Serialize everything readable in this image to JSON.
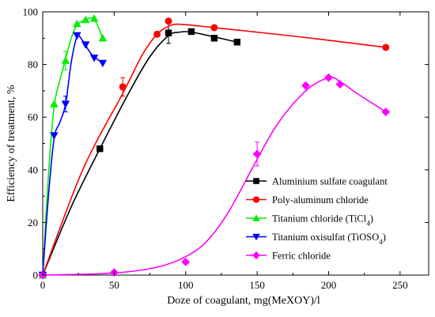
{
  "chart_data": {
    "type": "scatter",
    "xlabel": "Doze of coagulant, mg(MeXOY)/l",
    "ylabel": "Efficiency of treatment, %",
    "xlim": [
      0,
      270
    ],
    "ylim": [
      0,
      100
    ],
    "xticks": [
      0,
      50,
      100,
      150,
      200,
      250
    ],
    "yticks": [
      0,
      20,
      40,
      60,
      80,
      100
    ],
    "grid": false,
    "legend_position": "lower-right",
    "series": [
      {
        "name": "Aluminium sulfate coagulant",
        "color": "#000000",
        "marker": "square",
        "x": [
          0,
          40,
          88,
          104,
          120,
          136
        ],
        "y": [
          0,
          48,
          92,
          92.5,
          90,
          88.5
        ],
        "curve": [
          [
            0,
            0
          ],
          [
            20,
            26
          ],
          [
            40,
            48
          ],
          [
            60,
            69
          ],
          [
            75,
            83
          ],
          [
            88,
            91
          ],
          [
            96,
            92.3
          ],
          [
            104,
            92.3
          ],
          [
            120,
            90.5
          ],
          [
            136,
            88.5
          ]
        ],
        "errors": [
          null,
          null,
          4,
          null,
          null,
          null
        ]
      },
      {
        "name": "Poly-aluminum chloride",
        "color": "#ff0000",
        "marker": "circle",
        "x": [
          0,
          56,
          80,
          88,
          120,
          240
        ],
        "y": [
          0,
          71.5,
          91.5,
          96.5,
          94,
          86.5
        ],
        "curve": [
          [
            0,
            0
          ],
          [
            28,
            40
          ],
          [
            56,
            69
          ],
          [
            70,
            84
          ],
          [
            80,
            91.5
          ],
          [
            88,
            94.5
          ],
          [
            96,
            95.3
          ],
          [
            120,
            94
          ],
          [
            180,
            90.5
          ],
          [
            240,
            86.5
          ]
        ],
        "errors": [
          null,
          3.5,
          null,
          null,
          null,
          null
        ]
      },
      {
        "name": "Titanium chloride (TiCl4)",
        "color": "#00ee00",
        "marker": "triangle-up",
        "x": [
          0,
          8,
          16,
          24,
          30,
          36,
          42
        ],
        "y": [
          0,
          65,
          81.5,
          95.5,
          97,
          97.5,
          90
        ],
        "curve": [
          [
            0,
            0
          ],
          [
            4,
            38
          ],
          [
            8,
            64
          ],
          [
            12,
            74
          ],
          [
            16,
            82
          ],
          [
            20,
            90
          ],
          [
            24,
            95
          ],
          [
            30,
            97
          ],
          [
            36,
            97.2
          ],
          [
            42,
            90
          ]
        ],
        "errors": [
          null,
          null,
          3.5,
          null,
          null,
          null,
          null
        ]
      },
      {
        "name": "Titanium oxisulfat (TiOSO4)",
        "color": "#0000ff",
        "marker": "triangle-down",
        "x": [
          0,
          8,
          16,
          24,
          30,
          36,
          42
        ],
        "y": [
          0,
          53,
          65,
          91,
          87.5,
          82.5,
          80.5
        ],
        "curve": [
          [
            0,
            0
          ],
          [
            4,
            30
          ],
          [
            8,
            52
          ],
          [
            12,
            58
          ],
          [
            16,
            65
          ],
          [
            20,
            81
          ],
          [
            24,
            90.5
          ],
          [
            28,
            89
          ],
          [
            34,
            84
          ],
          [
            42,
            80.5
          ]
        ],
        "errors": [
          null,
          null,
          3,
          null,
          null,
          null,
          null
        ]
      },
      {
        "name": "Ferric chloride",
        "color": "#ff00ff",
        "marker": "diamond",
        "x": [
          0,
          50,
          100,
          150,
          184,
          200,
          208,
          240
        ],
        "y": [
          0,
          1,
          5,
          46,
          72,
          75,
          72.5,
          62
        ],
        "curve": [
          [
            0,
            0
          ],
          [
            50,
            0.8
          ],
          [
            80,
            3
          ],
          [
            100,
            7
          ],
          [
            115,
            13
          ],
          [
            130,
            24
          ],
          [
            150,
            44
          ],
          [
            165,
            58
          ],
          [
            184,
            70
          ],
          [
            200,
            75
          ],
          [
            208,
            73.5
          ],
          [
            220,
            69
          ],
          [
            240,
            62
          ]
        ],
        "errors": [
          null,
          null,
          null,
          4.5,
          null,
          null,
          null,
          null
        ]
      }
    ]
  }
}
